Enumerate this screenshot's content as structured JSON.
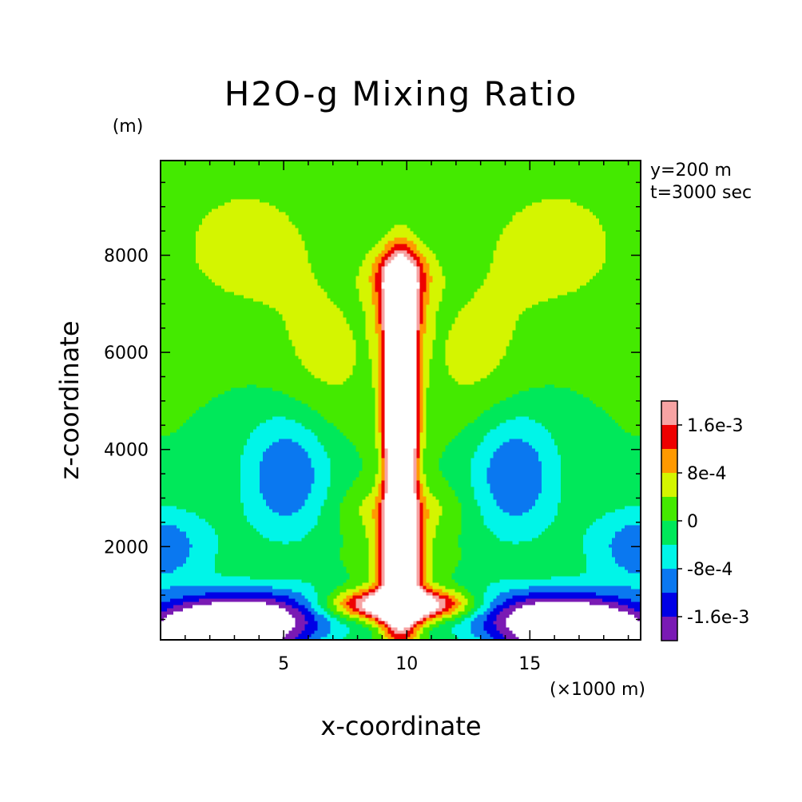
{
  "chart_data": {
    "type": "heatmap",
    "title": "H2O-g Mixing Ratio",
    "xlabel": "x-coordinate",
    "ylabel": "z-coordinate",
    "x_unit": "(×1000 m)",
    "y_unit": "(m)",
    "annotations": [
      "y=200 m",
      "t=3000 sec"
    ],
    "xlim": [
      0,
      19.5
    ],
    "ylim": [
      80,
      9950
    ],
    "x_ticks": [
      5,
      10,
      15
    ],
    "x_tick_labels": [
      "5",
      "10",
      "15"
    ],
    "y_ticks": [
      2000,
      4000,
      6000,
      8000
    ],
    "y_tick_labels": [
      "2000",
      "4000",
      "6000",
      "8000"
    ],
    "colorbar": {
      "levels": [
        -0.002,
        -0.0016,
        -0.0012,
        -0.0008,
        -0.0004,
        0,
        0.0004,
        0.0008,
        0.0012,
        0.0016,
        0.002
      ],
      "colors": [
        "#7a1ab4",
        "#0000e6",
        "#0a78f0",
        "#00f5e8",
        "#00e85a",
        "#44ea00",
        "#d4f500",
        "#ff9900",
        "#ee0000",
        "#f7a3a3"
      ],
      "tick_labels": [
        "-1.6e-3",
        "-8e-4",
        "0",
        "8e-4",
        "1.6e-3"
      ],
      "tick_values": [
        -0.0016,
        -0.0008,
        0,
        0.0008,
        0.0016
      ],
      "over_color": "#ffffff",
      "under_color": "#ffffff"
    },
    "grid": false,
    "legend": "right"
  }
}
